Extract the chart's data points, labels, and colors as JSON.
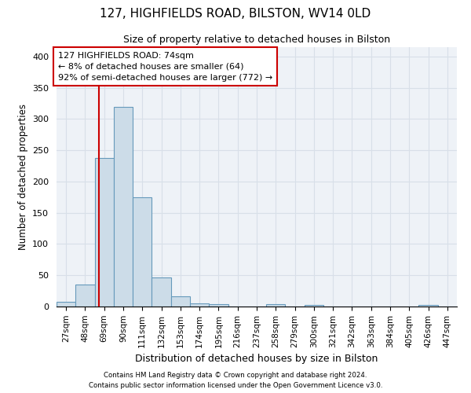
{
  "title_line1": "127, HIGHFIELDS ROAD, BILSTON, WV14 0LD",
  "title_line2": "Size of property relative to detached houses in Bilston",
  "xlabel": "Distribution of detached houses by size in Bilston",
  "ylabel": "Number of detached properties",
  "footnote1": "Contains HM Land Registry data © Crown copyright and database right 2024.",
  "footnote2": "Contains public sector information licensed under the Open Government Licence v3.0.",
  "bar_labels": [
    "27sqm",
    "48sqm",
    "69sqm",
    "90sqm",
    "111sqm",
    "132sqm",
    "153sqm",
    "174sqm",
    "195sqm",
    "216sqm",
    "237sqm",
    "258sqm",
    "279sqm",
    "300sqm",
    "321sqm",
    "342sqm",
    "363sqm",
    "384sqm",
    "405sqm",
    "426sqm",
    "447sqm"
  ],
  "bar_values": [
    8,
    35,
    238,
    320,
    175,
    46,
    16,
    5,
    4,
    0,
    0,
    4,
    0,
    2,
    0,
    0,
    0,
    0,
    0,
    2,
    0
  ],
  "bar_color": "#ccdce8",
  "bar_edge_color": "#6699bb",
  "grid_color": "#d8dfe8",
  "background_color": "#eef2f7",
  "vline_color": "#cc0000",
  "vline_x": 1.74,
  "annotation_text": "127 HIGHFIELDS ROAD: 74sqm\n← 8% of detached houses are smaller (64)\n92% of semi-detached houses are larger (772) →",
  "annotation_box_color": "#cc0000",
  "ylim": [
    0,
    415
  ],
  "yticks": [
    0,
    50,
    100,
    150,
    200,
    250,
    300,
    350,
    400
  ]
}
